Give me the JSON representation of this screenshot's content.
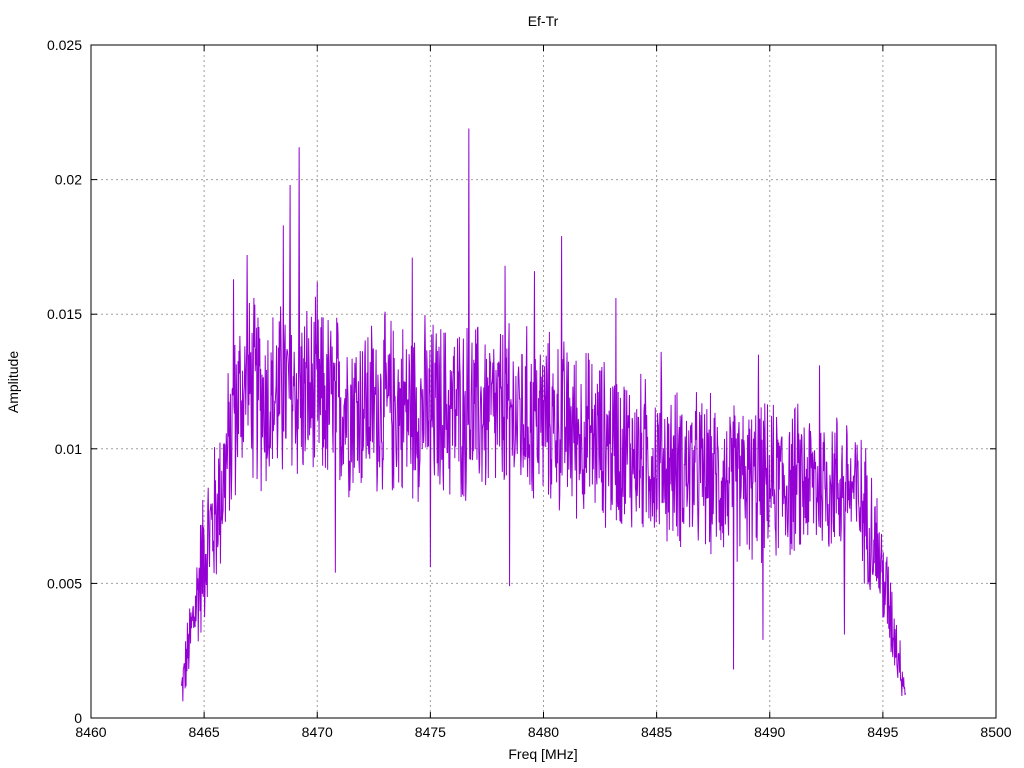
{
  "chart_data": {
    "type": "line",
    "title": "Ef-Tr",
    "xlabel": "Freq [MHz]",
    "ylabel": "Amplitude",
    "xlim": [
      8460,
      8500
    ],
    "ylim": [
      0,
      0.025
    ],
    "grid": true,
    "x_ticks": [
      "8460",
      "8465",
      "8470",
      "8475",
      "8480",
      "8485",
      "8490",
      "8495",
      "8500"
    ],
    "x_tick_values": [
      8460,
      8465,
      8470,
      8475,
      8480,
      8485,
      8490,
      8495,
      8500
    ],
    "y_ticks": [
      "0",
      "0.005",
      "0.01",
      "0.015",
      "0.02",
      "0.025"
    ],
    "y_tick_values": [
      0,
      0.005,
      0.01,
      0.015,
      0.02,
      0.025
    ],
    "series": [
      {
        "color": "#9400d3",
        "x_start": 8464.0,
        "x_end": 8496.0,
        "envelope_x": [
          8464.0,
          8464.5,
          8465.0,
          8465.5,
          8466.0,
          8466.5,
          8467.0,
          8468.0,
          8469.0,
          8470.0,
          8472.0,
          8474.0,
          8476.0,
          8478.0,
          8480.0,
          8482.0,
          8484.0,
          8486.0,
          8488.0,
          8490.0,
          8492.0,
          8493.5,
          8494.5,
          8495.0,
          8495.5,
          8496.0
        ],
        "envelope_mean": [
          0.001,
          0.0035,
          0.0062,
          0.0075,
          0.0095,
          0.0118,
          0.0122,
          0.0118,
          0.0122,
          0.0118,
          0.0116,
          0.0115,
          0.0114,
          0.0113,
          0.0111,
          0.0105,
          0.0098,
          0.0093,
          0.0088,
          0.0087,
          0.0088,
          0.0087,
          0.0072,
          0.0052,
          0.0032,
          0.001
        ],
        "envelope_spread": [
          0.0008,
          0.0018,
          0.0026,
          0.0028,
          0.003,
          0.0032,
          0.0034,
          0.0034,
          0.0034,
          0.0033,
          0.0032,
          0.0032,
          0.0032,
          0.0032,
          0.0031,
          0.003,
          0.0029,
          0.0028,
          0.0028,
          0.0028,
          0.0027,
          0.0026,
          0.0024,
          0.002,
          0.0014,
          0.0006
        ],
        "peaks": [
          {
            "x": 8466.3,
            "y": 0.0163
          },
          {
            "x": 8466.9,
            "y": 0.0172
          },
          {
            "x": 8468.5,
            "y": 0.0183
          },
          {
            "x": 8468.8,
            "y": 0.0198
          },
          {
            "x": 8469.2,
            "y": 0.0212
          },
          {
            "x": 8470.0,
            "y": 0.0162
          },
          {
            "x": 8474.2,
            "y": 0.0171
          },
          {
            "x": 8476.7,
            "y": 0.0219
          },
          {
            "x": 8478.3,
            "y": 0.0168
          },
          {
            "x": 8479.6,
            "y": 0.0166
          },
          {
            "x": 8480.8,
            "y": 0.0179
          },
          {
            "x": 8483.2,
            "y": 0.0156
          },
          {
            "x": 8485.2,
            "y": 0.0136
          },
          {
            "x": 8489.5,
            "y": 0.0135
          },
          {
            "x": 8492.2,
            "y": 0.0131
          },
          {
            "x": 8470.8,
            "y": 0.0054
          },
          {
            "x": 8475.0,
            "y": 0.0056
          },
          {
            "x": 8478.5,
            "y": 0.0049
          },
          {
            "x": 8488.4,
            "y": 0.0018
          },
          {
            "x": 8489.7,
            "y": 0.0029
          },
          {
            "x": 8493.3,
            "y": 0.0031
          }
        ]
      }
    ]
  }
}
